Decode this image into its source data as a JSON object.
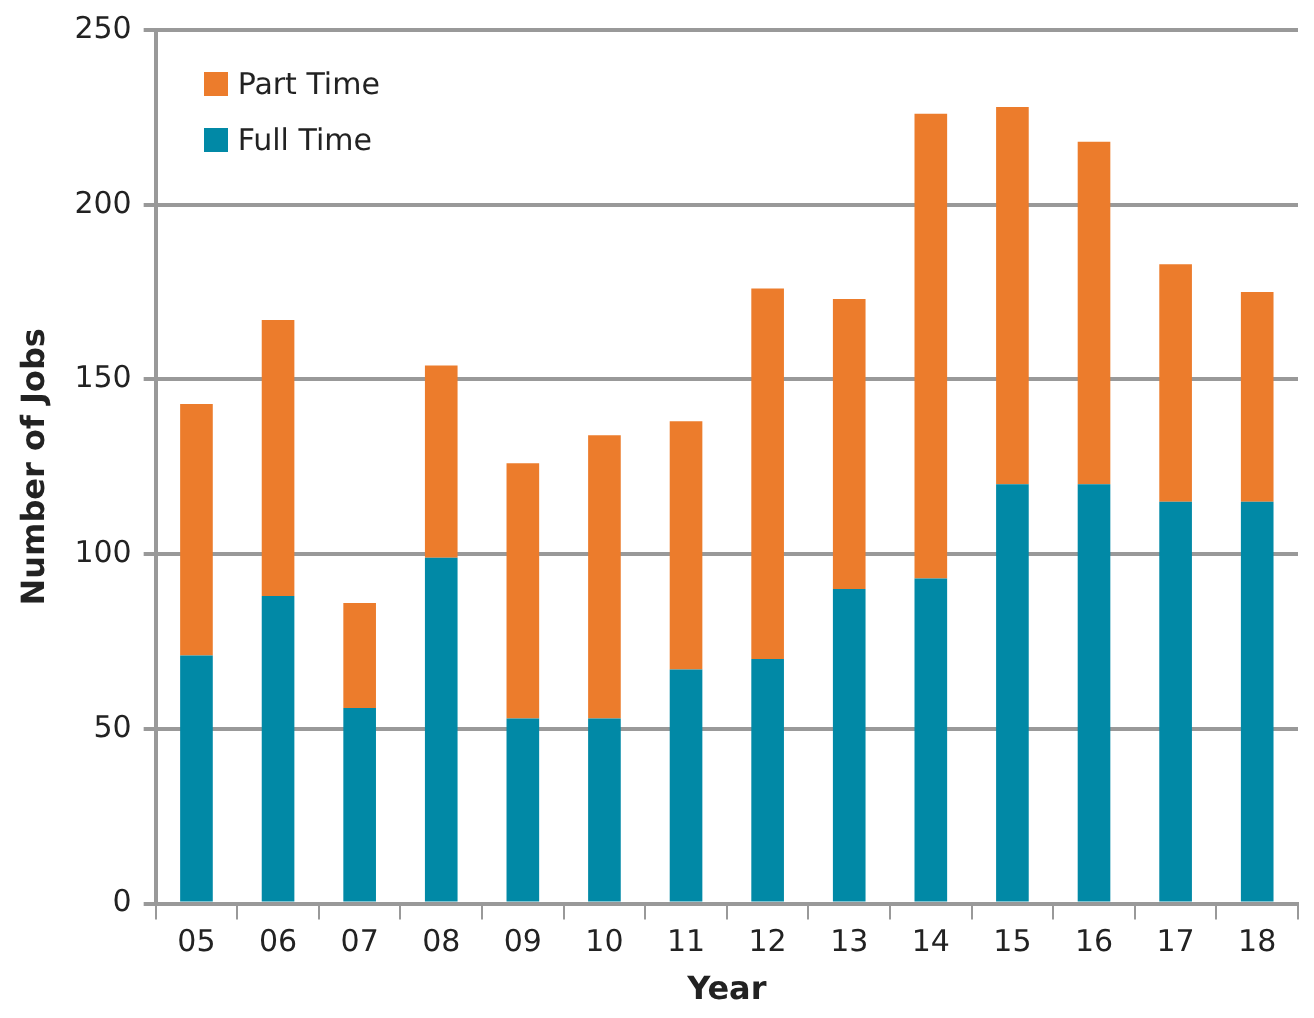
{
  "chart_data": {
    "type": "bar",
    "stacked": true,
    "xlabel": "Year",
    "ylabel": "Number of Jobs",
    "categories": [
      "05",
      "06",
      "07",
      "08",
      "09",
      "10",
      "11",
      "12",
      "13",
      "14",
      "15",
      "16",
      "17",
      "18"
    ],
    "series": [
      {
        "name": "Full Time",
        "color": "#0189a6",
        "values": [
          71,
          88,
          56,
          99,
          53,
          53,
          67,
          70,
          90,
          93,
          120,
          120,
          115,
          115
        ]
      },
      {
        "name": "Part Time",
        "color": "#ec7c2c",
        "values": [
          72,
          79,
          30,
          55,
          73,
          81,
          71,
          106,
          83,
          133,
          108,
          98,
          68,
          60
        ]
      }
    ],
    "ylim": [
      0,
      250
    ],
    "yticks": [
      0,
      50,
      100,
      150,
      200,
      250
    ],
    "grid": "y",
    "legend": "top left"
  }
}
